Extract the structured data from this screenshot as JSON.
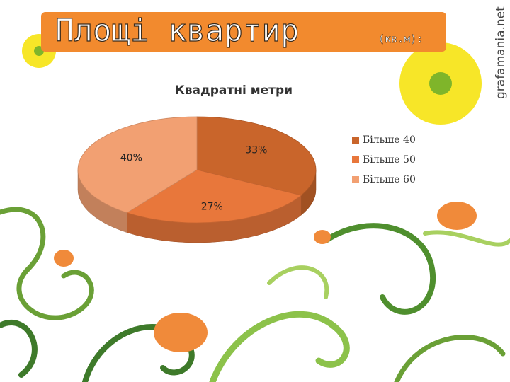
{
  "slide": {
    "title": "Площі квартир",
    "title_note": "(кв.м):",
    "watermark": "grafamania.net"
  },
  "chart_data": {
    "type": "pie",
    "title": "Квадратні метри",
    "categories": [
      "Більше 40",
      "Більше 50",
      "Більше 60"
    ],
    "values": [
      33,
      27,
      40
    ],
    "value_labels": [
      "33%",
      "27%",
      "40%"
    ],
    "colors": [
      "#c9652b",
      "#e8773b",
      "#f2a072"
    ],
    "legend": "right"
  }
}
